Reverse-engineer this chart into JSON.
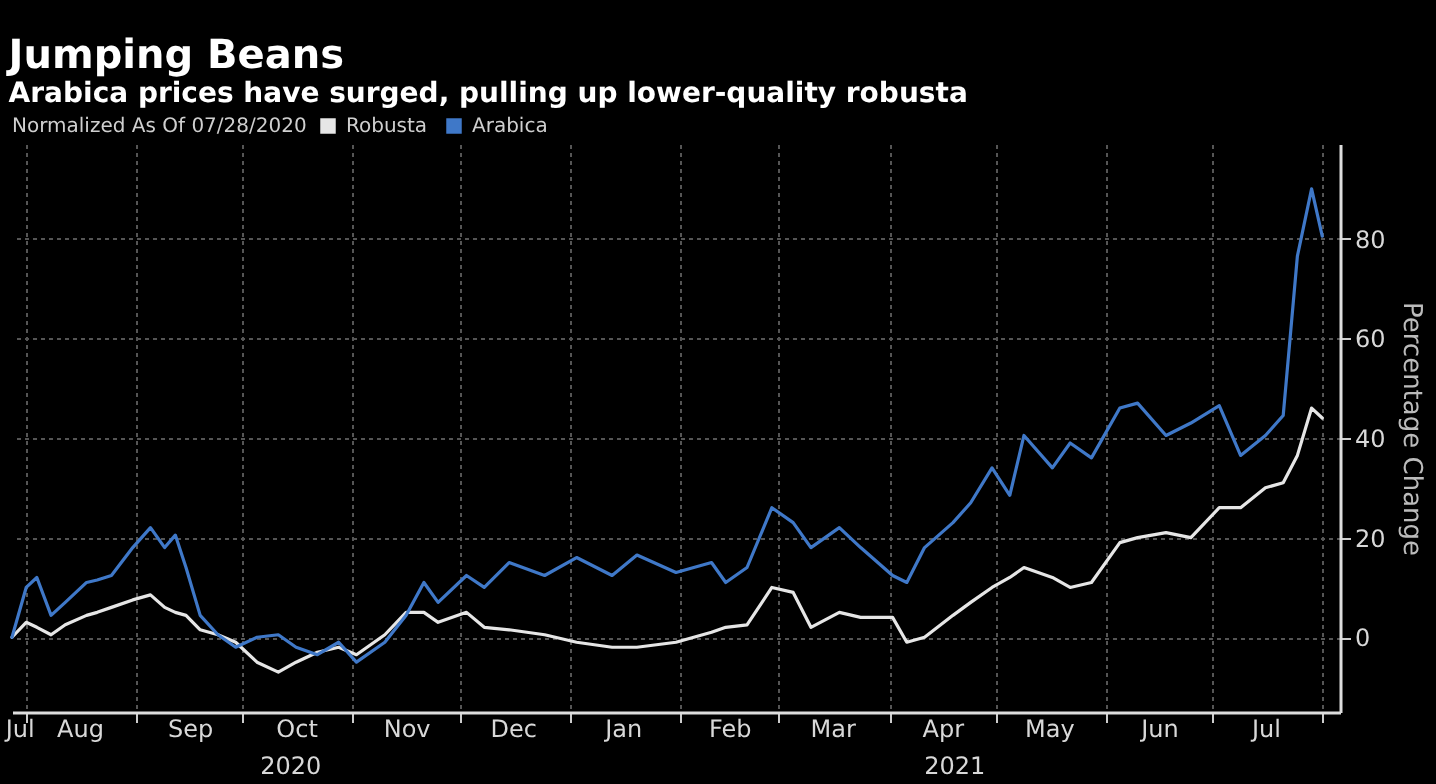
{
  "chart_data": {
    "type": "line",
    "title": "Jumping Beans",
    "subtitle": "Arabica prices have surged, pulling up lower-quality robusta",
    "ylabel": "Percentage Change",
    "legend_title": "Normalized As Of 07/28/2020",
    "legend": "top left",
    "grid": true,
    "x": [
      "2020-07-28",
      "2020-08-01",
      "2020-08-04",
      "2020-08-08",
      "2020-08-12",
      "2020-08-18",
      "2020-08-21",
      "2020-08-25",
      "2020-08-31",
      "2020-09-05",
      "2020-09-09",
      "2020-09-12",
      "2020-09-15",
      "2020-09-19",
      "2020-09-24",
      "2020-09-29",
      "2020-10-05",
      "2020-10-11",
      "2020-10-16",
      "2020-10-22",
      "2020-10-28",
      "2020-11-02",
      "2020-11-10",
      "2020-11-16",
      "2020-11-21",
      "2020-11-25",
      "2020-12-03",
      "2020-12-08",
      "2020-12-15",
      "2020-12-25",
      "2021-01-03",
      "2021-01-13",
      "2021-01-20",
      "2021-01-31",
      "2021-02-10",
      "2021-02-14",
      "2021-02-20",
      "2021-02-27",
      "2021-03-05",
      "2021-03-10",
      "2021-03-18",
      "2021-03-24",
      "2021-04-02",
      "2021-04-06",
      "2021-04-11",
      "2021-04-19",
      "2021-04-24",
      "2021-04-30",
      "2021-05-05",
      "2021-05-09",
      "2021-05-17",
      "2021-05-22",
      "2021-05-28",
      "2021-06-05",
      "2021-06-10",
      "2021-06-18",
      "2021-06-25",
      "2021-07-03",
      "2021-07-09",
      "2021-07-16",
      "2021-07-21",
      "2021-07-25",
      "2021-07-29",
      "2021-08-01"
    ],
    "series": [
      {
        "name": "Robusta",
        "color": "#e6e6e6",
        "values": [
          0,
          3,
          2,
          0.5,
          2.5,
          4.4,
          5,
          6,
          7.5,
          8.5,
          6,
          5,
          4.4,
          1.5,
          0.5,
          -1,
          -5,
          -7,
          -5,
          -3,
          -2,
          -3.5,
          0.5,
          5,
          5,
          3,
          5,
          2,
          1.5,
          0.5,
          -1,
          -2,
          -2,
          -1,
          1,
          2,
          2.5,
          10,
          9,
          2,
          5,
          4,
          4,
          -1,
          0,
          4.4,
          7,
          10,
          12,
          14,
          12,
          10,
          11,
          19,
          20,
          21,
          20,
          26,
          26,
          30,
          31,
          36.5,
          46,
          44
        ]
      },
      {
        "name": "Arabica",
        "color": "#3f78c8",
        "values": [
          0,
          10,
          12,
          4.4,
          7,
          11,
          11.5,
          12.4,
          18,
          22,
          18,
          20.5,
          14,
          4.4,
          0.5,
          -2,
          0,
          0.5,
          -2,
          -3.5,
          -1,
          -5,
          -1,
          4.4,
          11,
          7,
          12.4,
          10,
          15,
          12.4,
          16,
          12.4,
          16.5,
          13,
          15,
          11,
          14,
          26,
          23,
          18,
          22,
          18,
          12.4,
          11,
          18,
          23,
          27,
          34,
          28.5,
          40.5,
          34,
          39,
          36,
          46,
          47,
          40.5,
          43,
          46.5,
          36.5,
          40.5,
          44.5,
          76.5,
          90,
          80.5
        ]
      }
    ],
    "xlim": [
      "2020-07-28",
      "2021-08-06"
    ],
    "xticks": [
      {
        "value": "2020-07-30",
        "label": "Jul"
      },
      {
        "value": "2020-08-01",
        "label": null
      },
      {
        "value": "2020-08-16",
        "label": "Aug"
      },
      {
        "value": "2020-09-01",
        "label": null
      },
      {
        "value": "2020-09-16",
        "label": "Sep"
      },
      {
        "value": "2020-10-01",
        "label": null
      },
      {
        "value": "2020-10-16",
        "label": "Oct"
      },
      {
        "value": "2020-11-01",
        "label": null
      },
      {
        "value": "2020-11-16",
        "label": "Nov"
      },
      {
        "value": "2020-12-01",
        "label": null
      },
      {
        "value": "2020-12-16",
        "label": "Dec"
      },
      {
        "value": "2021-01-01",
        "label": null
      },
      {
        "value": "2021-01-16",
        "label": "Jan"
      },
      {
        "value": "2021-02-01",
        "label": null
      },
      {
        "value": "2021-02-15",
        "label": "Feb"
      },
      {
        "value": "2021-03-01",
        "label": null
      },
      {
        "value": "2021-03-16",
        "label": "Mar"
      },
      {
        "value": "2021-04-01",
        "label": null
      },
      {
        "value": "2021-04-16",
        "label": "Apr"
      },
      {
        "value": "2021-05-01",
        "label": null
      },
      {
        "value": "2021-05-16",
        "label": "May"
      },
      {
        "value": "2021-06-01",
        "label": null
      },
      {
        "value": "2021-06-16",
        "label": "Jun"
      },
      {
        "value": "2021-07-01",
        "label": null
      },
      {
        "value": "2021-07-16",
        "label": "Jul"
      },
      {
        "value": "2021-08-01",
        "label": null
      }
    ],
    "ylim": [
      -15,
      99
    ],
    "yticks": [
      0,
      20,
      40,
      60,
      80
    ],
    "annotations": [
      "2020",
      "2021"
    ]
  }
}
